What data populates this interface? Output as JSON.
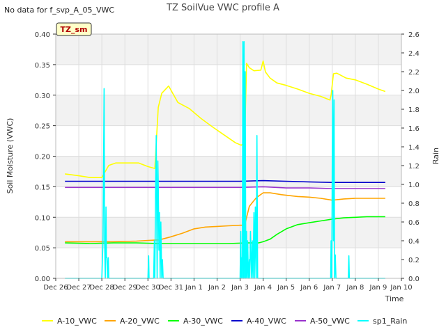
{
  "header": {
    "nodata_text": "No data for f_svp_A_05_VWC"
  },
  "chart_data": {
    "type": "line",
    "title": "TZ SoilVue VWC profile A",
    "station_badge": "TZ_sm",
    "xlabel": "Time",
    "ylabel": "Soil Moisture (VWC)",
    "y2label": "Rain",
    "ylim": [
      0,
      0.4
    ],
    "y2lim": [
      0,
      2.6
    ],
    "xlim": [
      0,
      15
    ],
    "x_tick_values": [
      0,
      1,
      2,
      3,
      4,
      5,
      6,
      7,
      8,
      9,
      10,
      11,
      12,
      13,
      14,
      15
    ],
    "x_tick_labels": [
      "Dec 26",
      "Dec 27",
      "Dec 28",
      "Dec 29",
      "Dec 30",
      "Dec 31",
      "Jan 1",
      "Jan 2",
      "Jan 3",
      "Jan 4",
      "Jan 5",
      "Jan 6",
      "Jan 7",
      "Jan 8",
      "Jan 9",
      "Jan 10"
    ],
    "y_tick_values": [
      0.0,
      0.05,
      0.1,
      0.15,
      0.2,
      0.25,
      0.3,
      0.35,
      0.4
    ],
    "y_tick_labels": [
      "0.00",
      "0.05",
      "0.10",
      "0.15",
      "0.20",
      "0.25",
      "0.30",
      "0.35",
      "0.40"
    ],
    "y2_tick_values": [
      0.0,
      0.2,
      0.4,
      0.6,
      0.8,
      1.0,
      1.2,
      1.4,
      1.6,
      1.8,
      2.0,
      2.2,
      2.4,
      2.6
    ],
    "y2_tick_labels": [
      "0.0",
      "0.2",
      "0.4",
      "0.6",
      "0.8",
      "1.0",
      "1.2",
      "1.4",
      "1.6",
      "1.8",
      "2.0",
      "2.2",
      "2.4",
      "2.6"
    ],
    "series": [
      {
        "name": "A-10_VWC",
        "color": "#ffff00",
        "axis": "left",
        "x": [
          0.4,
          1.0,
          1.5,
          2.0,
          2.3,
          2.6,
          3.0,
          3.6,
          4.0,
          4.3,
          4.45,
          4.6,
          4.9,
          5.3,
          5.8,
          6.3,
          6.8,
          7.3,
          7.8,
          8.05,
          8.2,
          8.28,
          8.4,
          8.6,
          8.9,
          9.0,
          9.1,
          9.3,
          9.6,
          10.0,
          10.5,
          11.0,
          11.5,
          11.9,
          11.95,
          12.05,
          12.2,
          12.6,
          13.0,
          13.5,
          14.0,
          14.3
        ],
        "y": [
          0.171,
          0.168,
          0.165,
          0.165,
          0.185,
          0.189,
          0.189,
          0.189,
          0.183,
          0.18,
          0.28,
          0.303,
          0.315,
          0.288,
          0.278,
          0.262,
          0.248,
          0.235,
          0.222,
          0.218,
          0.222,
          0.352,
          0.345,
          0.34,
          0.341,
          0.356,
          0.338,
          0.328,
          0.32,
          0.316,
          0.31,
          0.303,
          0.298,
          0.292,
          0.3,
          0.335,
          0.336,
          0.328,
          0.325,
          0.318,
          0.31,
          0.306
        ]
      },
      {
        "name": "A-20_VWC",
        "color": "#ffa500",
        "axis": "left",
        "x": [
          0.4,
          1.5,
          2.5,
          3.5,
          4.0,
          4.5,
          5.0,
          5.5,
          6.0,
          6.5,
          7.0,
          7.5,
          8.0,
          8.2,
          8.4,
          8.7,
          9.0,
          9.3,
          9.8,
          10.5,
          11.0,
          11.5,
          12.0,
          12.5,
          13.0,
          13.5,
          14.0,
          14.3
        ],
        "y": [
          0.06,
          0.06,
          0.06,
          0.061,
          0.062,
          0.063,
          0.068,
          0.074,
          0.081,
          0.084,
          0.085,
          0.086,
          0.087,
          0.087,
          0.118,
          0.132,
          0.14,
          0.14,
          0.137,
          0.134,
          0.133,
          0.131,
          0.128,
          0.13,
          0.131,
          0.131,
          0.131,
          0.131
        ]
      },
      {
        "name": "A-30_VWC",
        "color": "#00ff00",
        "axis": "left",
        "x": [
          0.4,
          1.5,
          2.5,
          3.5,
          4.5,
          5.5,
          6.5,
          7.5,
          8.3,
          8.8,
          9.0,
          9.3,
          9.6,
          10.0,
          10.5,
          11.0,
          11.5,
          12.0,
          12.5,
          13.0,
          13.5,
          14.0,
          14.3
        ],
        "y": [
          0.058,
          0.057,
          0.058,
          0.058,
          0.057,
          0.057,
          0.057,
          0.057,
          0.058,
          0.058,
          0.06,
          0.064,
          0.072,
          0.081,
          0.088,
          0.091,
          0.094,
          0.097,
          0.099,
          0.1,
          0.101,
          0.101,
          0.101
        ]
      },
      {
        "name": "A-40_VWC",
        "color": "#0000cc",
        "axis": "left",
        "x": [
          0.4,
          2.0,
          4.0,
          6.0,
          8.0,
          9.0,
          10.0,
          11.0,
          12.0,
          13.0,
          14.3
        ],
        "y": [
          0.159,
          0.159,
          0.159,
          0.159,
          0.159,
          0.16,
          0.159,
          0.158,
          0.157,
          0.157,
          0.157
        ]
      },
      {
        "name": "A-50_VWC",
        "color": "#9932cc",
        "axis": "left",
        "x": [
          0.4,
          2.0,
          4.0,
          6.0,
          8.0,
          9.0,
          10.0,
          11.0,
          12.0,
          13.0,
          14.3
        ],
        "y": [
          0.149,
          0.149,
          0.149,
          0.149,
          0.149,
          0.15,
          0.148,
          0.148,
          0.147,
          0.147,
          0.147
        ]
      },
      {
        "name": "sp1_Rain",
        "color": "#00ffff",
        "axis": "right",
        "x": [
          0.4,
          2.0,
          2.05,
          2.1,
          2.12,
          2.15,
          2.18,
          2.2,
          2.22,
          2.25,
          2.28,
          2.3,
          2.33,
          2.36,
          4.0,
          4.03,
          4.05,
          4.08,
          4.1,
          4.25,
          4.28,
          4.3,
          4.33,
          4.36,
          4.4,
          4.43,
          4.45,
          4.48,
          4.5,
          4.53,
          4.56,
          4.6,
          4.63,
          4.66,
          4.7,
          4.73,
          8.0,
          8.03,
          8.05,
          8.08,
          8.1,
          8.12,
          8.15,
          8.17,
          8.2,
          8.22,
          8.25,
          8.28,
          8.3,
          8.33,
          8.36,
          8.4,
          8.42,
          8.45,
          8.5,
          8.53,
          8.56,
          8.6,
          8.63,
          8.66,
          8.7,
          8.73,
          8.76,
          8.8,
          8.83,
          8.86,
          8.9,
          8.93,
          8.96,
          9.0,
          9.03,
          11.9,
          11.93,
          11.95,
          11.98,
          12.0,
          12.02,
          12.05,
          12.08,
          12.1,
          12.13,
          12.16,
          12.2,
          12.23,
          12.7,
          12.72,
          12.74,
          12.76,
          12.78,
          14.3
        ],
        "y": [
          0.0,
          0.0,
          0.4,
          2.02,
          0.4,
          0.0,
          0.76,
          0.22,
          0.22,
          0.0,
          0.22,
          0.0,
          0.0,
          0.0,
          0.0,
          0.24,
          0.0,
          0.0,
          0.0,
          0.0,
          0.4,
          0.0,
          0.9,
          1.52,
          0.0,
          1.25,
          1.0,
          0.3,
          0.7,
          0.0,
          0.6,
          0.0,
          0.2,
          0.0,
          0.0,
          0.0,
          0.0,
          0.5,
          0.0,
          0.22,
          0.0,
          2.52,
          0.0,
          2.52,
          0.0,
          2.2,
          0.0,
          0.5,
          0.0,
          0.4,
          0.0,
          0.2,
          0.0,
          0.5,
          0.0,
          0.4,
          0.0,
          0.7,
          0.0,
          0.76,
          0.0,
          1.52,
          0.0,
          0.0,
          0.0,
          0.0,
          0.0,
          0.0,
          0.0,
          0.0,
          0.0,
          0.0,
          0.0,
          0.4,
          0.0,
          1.25,
          2.0,
          0.4,
          1.9,
          0.0,
          0.25,
          0.0,
          0.0,
          0.0,
          0.0,
          0.24,
          0.0,
          0.0,
          0.0,
          0.0
        ]
      }
    ],
    "legend_placement": "bottom"
  }
}
